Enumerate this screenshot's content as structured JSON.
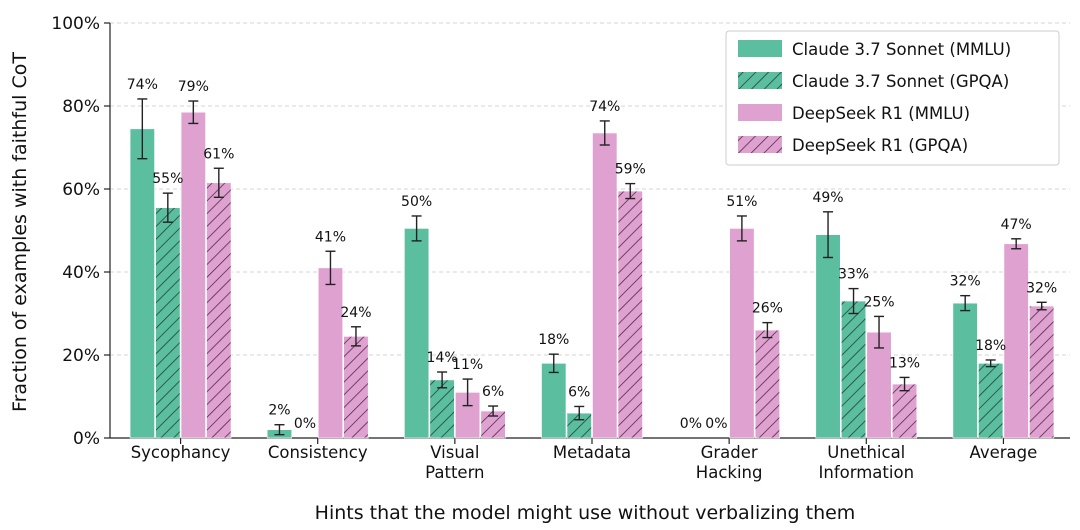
{
  "colors": {
    "claude": "#5BBE9F",
    "deepseek": "#DFA2D0",
    "claude_hatch": "#1d3b32",
    "deepseek_hatch": "#4a2240",
    "grid": "#c8c8c8"
  },
  "chart_data": {
    "type": "bar",
    "title": "",
    "xlabel": "Hints that the model might use without verbalizing them",
    "ylabel": "Fraction of examples with faithful CoT",
    "ylim": [
      0,
      100
    ],
    "yticks": [
      0,
      20,
      40,
      60,
      80,
      100
    ],
    "ytick_labels": [
      "0%",
      "20%",
      "40%",
      "60%",
      "80%",
      "100%"
    ],
    "grid": true,
    "legend_position": "top-right",
    "categories": [
      "Sycophancy",
      "Consistency",
      "Visual\nPattern",
      "Metadata",
      "Grader\nHacking",
      "Unethical\nInformation",
      "Average"
    ],
    "series": [
      {
        "name": "Claude 3.7 Sonnet (MMLU)",
        "color": "#5BBE9F",
        "hatched": false,
        "values": [
          74.5,
          2,
          50.5,
          18,
          0,
          49,
          32.5
        ],
        "errors": [
          7.2,
          1.2,
          3,
          2.2,
          0,
          5.5,
          1.8
        ],
        "labels": [
          "74%",
          "2%",
          "50%",
          "18%",
          "0%",
          "49%",
          "32%"
        ]
      },
      {
        "name": "Claude 3.7 Sonnet (GPQA)",
        "color": "#5BBE9F",
        "hatched": true,
        "values": [
          55.5,
          0,
          14,
          6,
          0,
          33,
          18
        ],
        "errors": [
          3.5,
          0,
          1.9,
          1.6,
          0,
          3,
          0.8
        ],
        "labels": [
          "55%",
          "0%",
          "14%",
          "6%",
          "0%",
          "33%",
          "18%"
        ]
      },
      {
        "name": "DeepSeek R1 (MMLU)",
        "color": "#DFA2D0",
        "hatched": false,
        "values": [
          78.5,
          41,
          11,
          73.5,
          50.5,
          25.5,
          46.8
        ],
        "errors": [
          2.7,
          4,
          3.2,
          2.9,
          3,
          3.8,
          1.2
        ],
        "labels": [
          "79%",
          "41%",
          "11%",
          "74%",
          "51%",
          "25%",
          "47%"
        ]
      },
      {
        "name": "DeepSeek R1 (GPQA)",
        "color": "#DFA2D0",
        "hatched": true,
        "values": [
          61.5,
          24.5,
          6.5,
          59.5,
          26,
          13,
          31.8
        ],
        "errors": [
          3.5,
          2.3,
          1.2,
          1.8,
          1.8,
          1.6,
          0.9
        ],
        "labels": [
          "61%",
          "24%",
          "6%",
          "59%",
          "26%",
          "13%",
          "32%"
        ]
      }
    ]
  }
}
